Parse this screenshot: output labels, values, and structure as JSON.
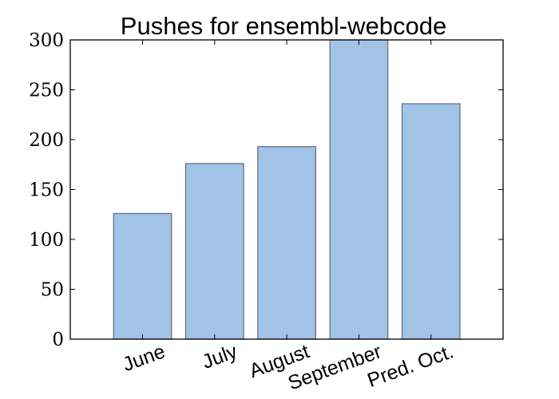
{
  "colors": {
    "bar_fill": "#a1c3e5",
    "bar_stroke": "#5b6b78",
    "axis": "#000000"
  },
  "chart_data": {
    "type": "bar",
    "title": "Pushes for ensembl-webcode",
    "xlabel": "",
    "ylabel": "",
    "categories": [
      "June",
      "July",
      "August",
      "September",
      "Pred. Oct."
    ],
    "values": [
      126,
      176,
      193,
      300,
      236
    ],
    "ylim": [
      0,
      300
    ],
    "yticks": [
      "0",
      "50",
      "100",
      "150",
      "200",
      "250",
      "300"
    ],
    "xtick_rotation_deg": -20,
    "grid": false,
    "legend": "none"
  }
}
